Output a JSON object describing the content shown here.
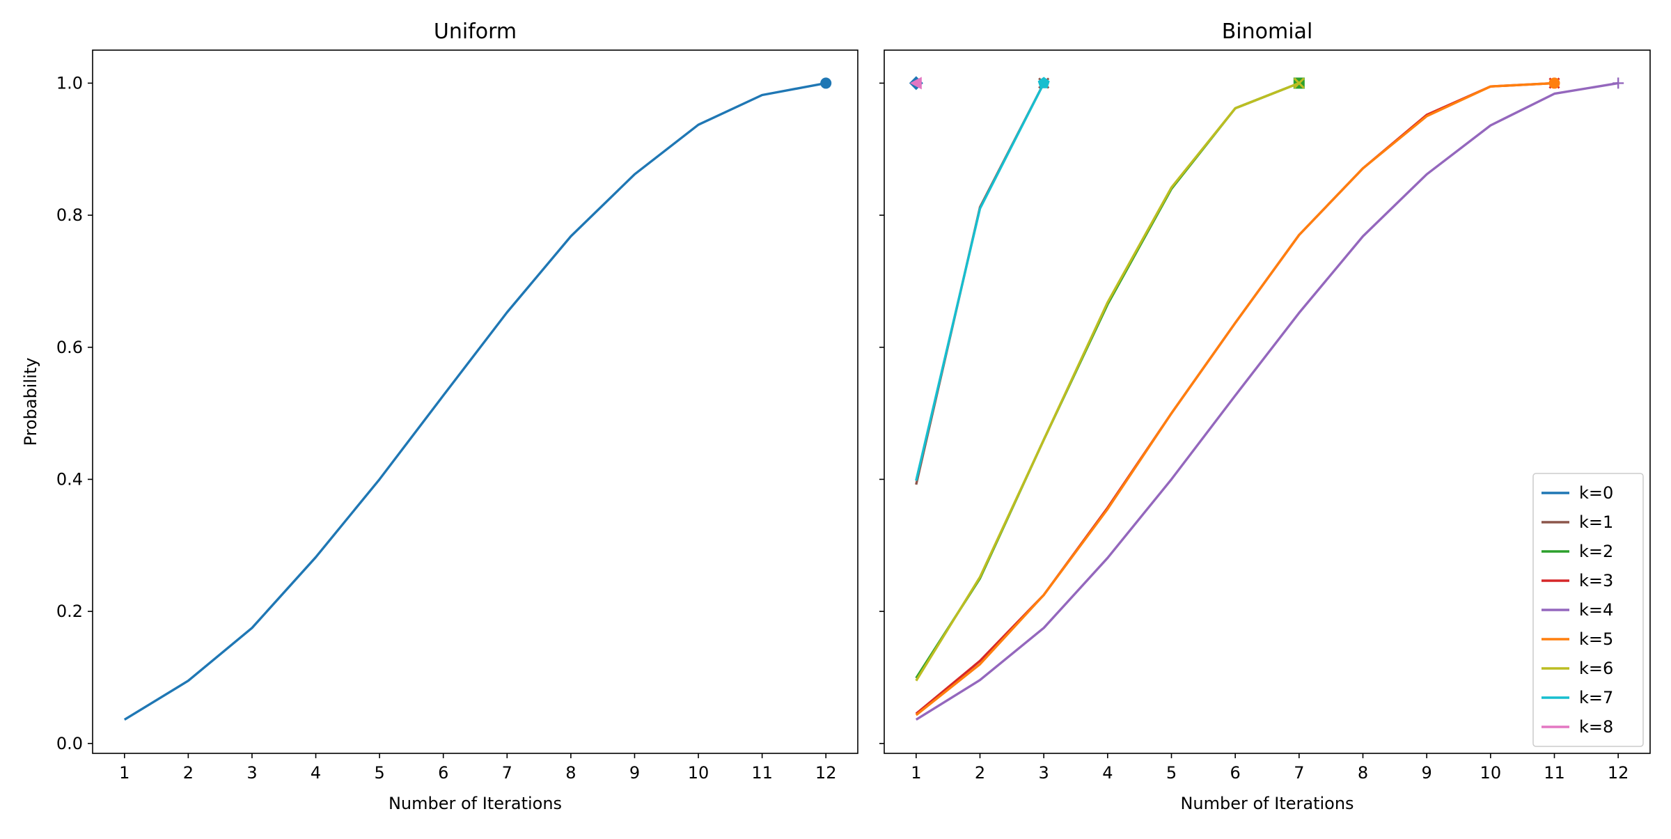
{
  "chart_data": [
    {
      "type": "line",
      "title": "Uniform",
      "xlabel": "Number of Iterations",
      "ylabel": "Probability",
      "xlim": [
        0.5,
        12.5
      ],
      "ylim": [
        -0.015,
        1.05
      ],
      "x_ticks": [
        "1",
        "2",
        "3",
        "4",
        "5",
        "6",
        "7",
        "8",
        "9",
        "10",
        "11",
        "12"
      ],
      "y_ticks": [
        "0.0",
        "0.2",
        "0.4",
        "0.6",
        "0.8",
        "1.0"
      ],
      "grid": false,
      "series": [
        {
          "color": "#1f77b4",
          "marker": "circle",
          "x": [
            1,
            2,
            3,
            4,
            5,
            6,
            7,
            8,
            9,
            10,
            11,
            12
          ],
          "y": [
            0.036,
            0.095,
            0.175,
            0.282,
            0.4,
            0.527,
            0.653,
            0.768,
            0.862,
            0.937,
            0.982,
            1.0
          ]
        }
      ]
    },
    {
      "type": "line",
      "title": "Binomial",
      "xlabel": "Number of Iterations",
      "ylabel": "",
      "xlim": [
        0.5,
        12.5
      ],
      "ylim": [
        -0.015,
        1.05
      ],
      "x_ticks": [
        "1",
        "2",
        "3",
        "4",
        "5",
        "6",
        "7",
        "8",
        "9",
        "10",
        "11",
        "12"
      ],
      "y_ticks": [
        "0.0",
        "0.2",
        "0.4",
        "0.6",
        "0.8",
        "1.0"
      ],
      "grid": false,
      "legend_position": "lower-right",
      "series": [
        {
          "name": "k=0",
          "color": "#1f77b4",
          "marker": "diamond",
          "x": [
            1
          ],
          "y": [
            1.0
          ]
        },
        {
          "name": "k=1",
          "color": "#8c564b",
          "marker": "x",
          "x": [
            1,
            2,
            3
          ],
          "y": [
            0.392,
            0.812,
            1.0
          ]
        },
        {
          "name": "k=2",
          "color": "#2ca02c",
          "marker": "square",
          "x": [
            1,
            2,
            3,
            4,
            5,
            6,
            7
          ],
          "y": [
            0.099,
            0.25,
            0.46,
            0.665,
            0.84,
            0.962,
            1.0
          ]
        },
        {
          "name": "k=3",
          "color": "#d62728",
          "marker": "x",
          "x": [
            1,
            2,
            3,
            4,
            5,
            6,
            7,
            8,
            9,
            10,
            11
          ],
          "y": [
            0.045,
            0.125,
            0.225,
            0.357,
            0.5,
            0.637,
            0.77,
            0.871,
            0.952,
            0.995,
            1.0
          ]
        },
        {
          "name": "k=4",
          "color": "#9467bd",
          "marker": "plus",
          "x": [
            1,
            2,
            3,
            4,
            5,
            6,
            7,
            8,
            9,
            10,
            11,
            12
          ],
          "y": [
            0.036,
            0.096,
            0.175,
            0.281,
            0.4,
            0.527,
            0.652,
            0.768,
            0.862,
            0.936,
            0.984,
            1.0
          ]
        },
        {
          "name": "k=5",
          "color": "#ff7f0e",
          "marker": "circle",
          "x": [
            1,
            2,
            3,
            4,
            5,
            6,
            7,
            8,
            9,
            10,
            11
          ],
          "y": [
            0.043,
            0.12,
            0.225,
            0.355,
            0.5,
            0.637,
            0.77,
            0.871,
            0.95,
            0.995,
            1.0
          ]
        },
        {
          "name": "k=6",
          "color": "#bcbd22",
          "marker": "x",
          "x": [
            1,
            2,
            3,
            4,
            5,
            6,
            7
          ],
          "y": [
            0.095,
            0.252,
            0.46,
            0.668,
            0.842,
            0.962,
            1.0
          ]
        },
        {
          "name": "k=7",
          "color": "#17becf",
          "marker": "pentagon",
          "x": [
            1,
            2,
            3
          ],
          "y": [
            0.398,
            0.81,
            1.0
          ]
        },
        {
          "name": "k=8",
          "color": "#e377c2",
          "marker": "triangle-left",
          "x": [
            1
          ],
          "y": [
            1.0
          ]
        }
      ]
    }
  ]
}
